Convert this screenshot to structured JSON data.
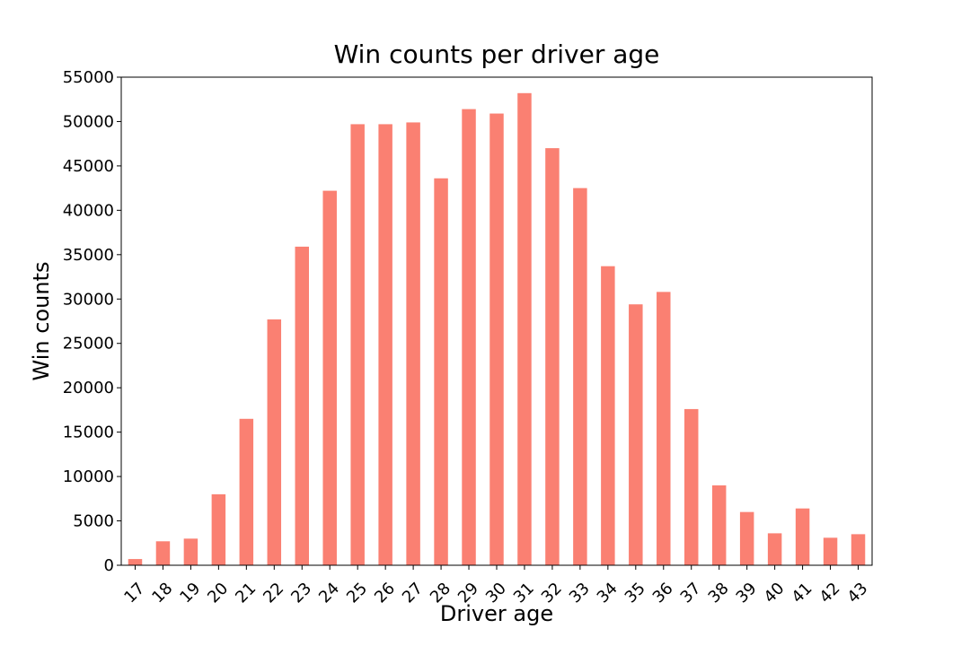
{
  "chart_data": {
    "type": "bar",
    "title": "Win counts per driver age",
    "xlabel": "Driver age",
    "ylabel": "Win counts",
    "categories": [
      "17",
      "18",
      "19",
      "20",
      "21",
      "22",
      "23",
      "24",
      "25",
      "26",
      "27",
      "28",
      "29",
      "30",
      "31",
      "32",
      "33",
      "34",
      "35",
      "36",
      "37",
      "38",
      "39",
      "40",
      "41",
      "42",
      "43"
    ],
    "values": [
      700,
      2700,
      3000,
      8000,
      16500,
      27700,
      35900,
      42200,
      49700,
      49700,
      49900,
      43600,
      51400,
      50900,
      53200,
      47000,
      42500,
      33700,
      29400,
      30800,
      17600,
      9000,
      6000,
      3600,
      6400,
      3100,
      3500
    ],
    "ylim": [
      0,
      55000
    ],
    "yticks": [
      0,
      5000,
      10000,
      15000,
      20000,
      25000,
      30000,
      35000,
      40000,
      45000,
      50000,
      55000
    ],
    "grid": false,
    "bar_color": "#fa8072"
  }
}
